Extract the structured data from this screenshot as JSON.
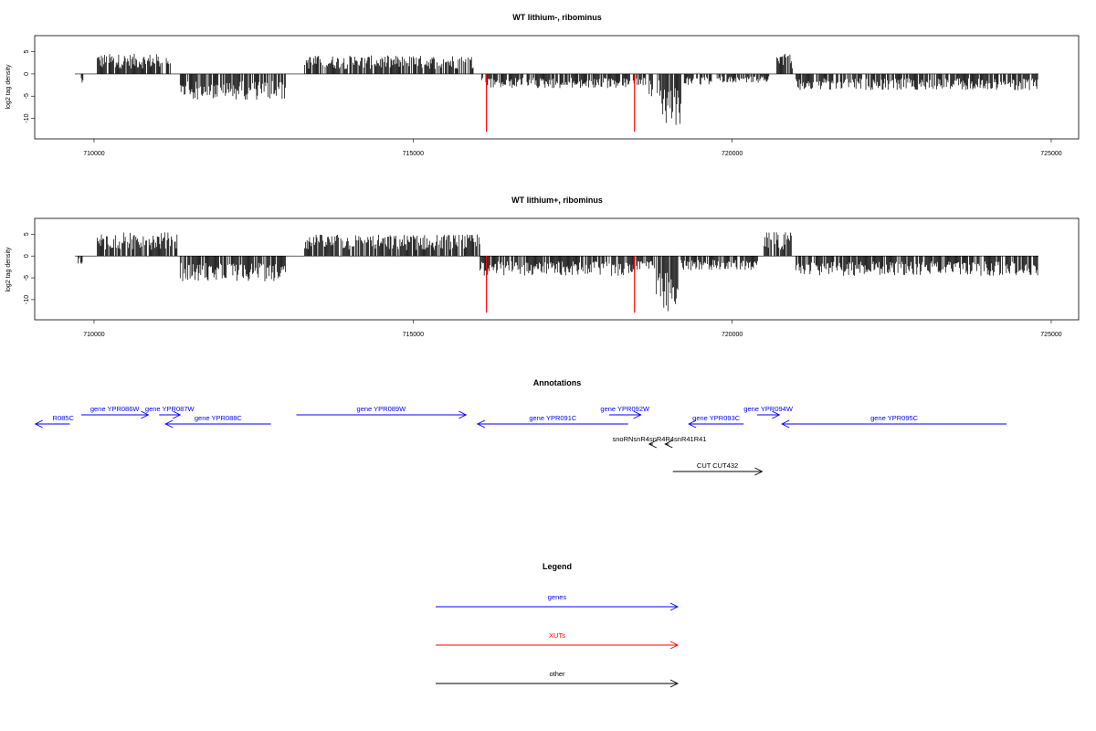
{
  "chart_data": [
    {
      "type": "bar",
      "title": "WT lithium-, ribominus",
      "ylabel": "log2 tag density",
      "xlim": [
        709700,
        724800
      ],
      "ylim": [
        -14,
        8
      ],
      "x_ticks": [
        710000,
        715000,
        720000,
        725000
      ],
      "y_ticks": [
        5,
        0,
        -5,
        -10
      ],
      "y_tick_labels": [
        "5",
        "0",
        "-5",
        "-10"
      ],
      "xut_markers": [
        716150,
        718470
      ],
      "segments": [
        {
          "start": 709800,
          "end": 709850,
          "level": -1.5
        },
        {
          "start": 710050,
          "end": 711200,
          "level": 3.5
        },
        {
          "start": 711350,
          "end": 713000,
          "level": -4.5
        },
        {
          "start": 713300,
          "end": 715950,
          "level": 3.2
        },
        {
          "start": 716050,
          "end": 718400,
          "level": -2.5
        },
        {
          "start": 718450,
          "end": 718650,
          "level": -2
        },
        {
          "start": 718700,
          "end": 718900,
          "level": -4
        },
        {
          "start": 718900,
          "end": 719200,
          "level": -9
        },
        {
          "start": 719250,
          "end": 719700,
          "level": -2
        },
        {
          "start": 719750,
          "end": 720600,
          "level": -1.5
        },
        {
          "start": 720700,
          "end": 720950,
          "level": 3.5
        },
        {
          "start": 721000,
          "end": 724800,
          "level": -2.8
        }
      ]
    },
    {
      "type": "bar",
      "title": "WT lithium+, ribominus",
      "ylabel": "log2 tag density",
      "xlim": [
        709700,
        724800
      ],
      "ylim": [
        -14,
        8
      ],
      "x_ticks": [
        710000,
        715000,
        720000,
        725000
      ],
      "y_ticks": [
        5,
        0,
        -5,
        -10
      ],
      "y_tick_labels": [
        "5",
        "0",
        "-5",
        "-10"
      ],
      "xut_markers": [
        716150,
        718470
      ],
      "segments": [
        {
          "start": 709750,
          "end": 709820,
          "level": -1.5
        },
        {
          "start": 710050,
          "end": 711300,
          "level": 4.2
        },
        {
          "start": 711350,
          "end": 713000,
          "level": -4.5
        },
        {
          "start": 713300,
          "end": 716050,
          "level": 3.8
        },
        {
          "start": 716050,
          "end": 718450,
          "level": -3.5
        },
        {
          "start": 718450,
          "end": 718800,
          "level": -2.5
        },
        {
          "start": 718800,
          "end": 719150,
          "level": -10
        },
        {
          "start": 719200,
          "end": 720400,
          "level": -2.5
        },
        {
          "start": 720500,
          "end": 720950,
          "level": 4.2
        },
        {
          "start": 721000,
          "end": 724800,
          "level": -3.5
        }
      ]
    },
    {
      "type": "table",
      "title": "Annotations",
      "xlim": [
        709700,
        724800
      ],
      "features": [
        {
          "label": "R085C",
          "start": 709080,
          "end": 709620,
          "strand": "-",
          "row": 1,
          "kind": "genes"
        },
        {
          "label": "gene YPR086W",
          "start": 709800,
          "end": 710850,
          "strand": "+",
          "row": 0,
          "kind": "genes"
        },
        {
          "label": "gene YPR087W",
          "start": 711020,
          "end": 711350,
          "strand": "+",
          "row": 0,
          "kind": "genes"
        },
        {
          "label": "gene YPR088C",
          "start": 711120,
          "end": 712770,
          "strand": "-",
          "row": 1,
          "kind": "genes"
        },
        {
          "label": "gene YPR089W",
          "start": 713170,
          "end": 715830,
          "strand": "+",
          "row": 0,
          "kind": "genes"
        },
        {
          "label": "gene YPR091C",
          "start": 716010,
          "end": 718370,
          "strand": "-",
          "row": 1,
          "kind": "genes"
        },
        {
          "label": "gene YPR092W",
          "start": 718070,
          "end": 718570,
          "strand": "+",
          "row": 0,
          "kind": "genes"
        },
        {
          "label": "gene YPR093C",
          "start": 719320,
          "end": 720180,
          "strand": "-",
          "row": 1,
          "kind": "genes"
        },
        {
          "label": "gene YPR094W",
          "start": 720390,
          "end": 720740,
          "strand": "+",
          "row": 0,
          "kind": "genes"
        },
        {
          "label": "gene YPR095C",
          "start": 720780,
          "end": 724300,
          "strand": "-",
          "row": 1,
          "kind": "genes"
        },
        {
          "label": "snoRNA",
          "start": 718700,
          "end": 718760,
          "strand": "-",
          "row": 2,
          "kind": "other"
        },
        {
          "label": "snR41",
          "start": 718950,
          "end": 719010,
          "strand": "-",
          "row": 2,
          "kind": "other"
        },
        {
          "label": "CUT CUT432",
          "start": 719070,
          "end": 720470,
          "strand": "+",
          "row": 3,
          "kind": "other"
        }
      ],
      "snorna_label_text": "snoRNsnR4snR4R4snR41R41"
    }
  ],
  "legend": {
    "title": "Legend",
    "items": [
      {
        "label": "genes",
        "color": "#0000ff"
      },
      {
        "label": "XUTs",
        "color": "#ff0000"
      },
      {
        "label": "other",
        "color": "#000000"
      }
    ]
  },
  "colors": {
    "gene": "#0000ff",
    "xut": "#ff0000",
    "other": "#000000",
    "bar": "#000000"
  }
}
